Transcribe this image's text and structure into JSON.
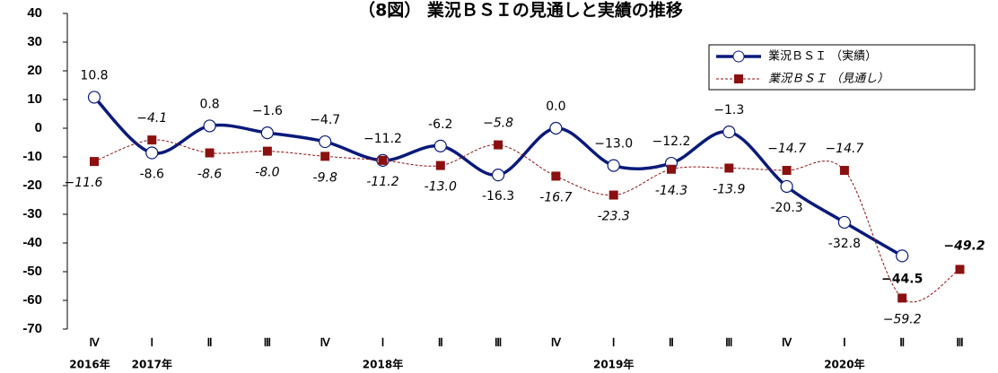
{
  "chart_data": {
    "type": "line",
    "title": "（8図） 業況ＢＳＩの見通しと実績の推移",
    "categories": [
      "Ⅳ",
      "Ⅰ",
      "Ⅱ",
      "Ⅲ",
      "Ⅳ",
      "Ⅰ",
      "Ⅱ",
      "Ⅲ",
      "Ⅳ",
      "Ⅰ",
      "Ⅱ",
      "Ⅲ",
      "Ⅳ",
      "Ⅰ",
      "Ⅱ",
      "Ⅲ"
    ],
    "year_labels": [
      "2016年",
      "2017年",
      null,
      null,
      null,
      "2018年",
      null,
      null,
      null,
      "2019年",
      null,
      null,
      null,
      "2020年",
      null,
      null
    ],
    "ylim": [
      -70,
      40
    ],
    "yticks": [
      40,
      30,
      20,
      10,
      0,
      -10,
      -20,
      -30,
      -40,
      -50,
      -60,
      -70
    ],
    "legend": "upper right",
    "series": [
      {
        "name": "業況ＢＳＩ （実績）",
        "color": "#0a1a7a",
        "values": [
          10.8,
          -8.6,
          0.8,
          -1.6,
          -4.7,
          -11.2,
          -6.2,
          -16.3,
          0.0,
          -13.0,
          -12.2,
          -1.3,
          -20.3,
          -32.8,
          -44.5,
          null
        ],
        "value_labels": [
          "10.8",
          "-8.6",
          "0.8",
          "−1.6",
          "−4.7",
          "−11.2",
          "-6.2",
          "-16.3",
          "0.0",
          "−13.0",
          "−12.2",
          "−1.3",
          "-20.3",
          "-32.8",
          "−44.5",
          null
        ]
      },
      {
        "name": "業況ＢＳＩ （見通し）",
        "color": "#8b1010",
        "values": [
          -11.6,
          -4.1,
          -8.6,
          -8.0,
          -9.8,
          -11.2,
          -13.0,
          -5.8,
          -16.7,
          -23.3,
          -14.3,
          -13.9,
          -14.7,
          -14.7,
          -59.2,
          -49.2
        ],
        "value_labels": [
          "−11.6",
          "−4.1",
          "-8.6",
          "-8.0",
          "-9.8",
          "-11.2",
          "-13.0",
          "−5.8",
          "-16.7",
          "-23.3",
          "-14.3",
          "-13.9",
          "−14.7",
          "−14.7",
          "−59.2",
          "−49.2"
        ]
      }
    ]
  }
}
